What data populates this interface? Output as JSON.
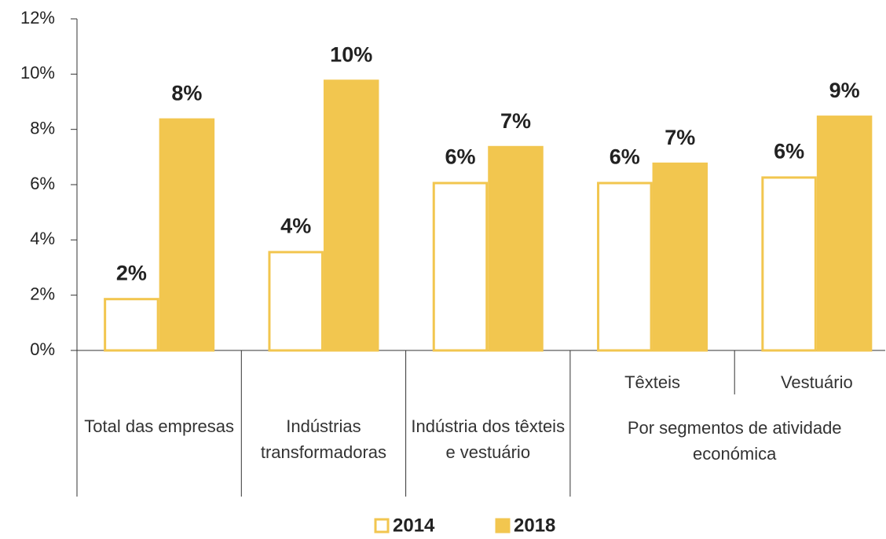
{
  "chart_data": {
    "type": "bar",
    "categories": [
      "Total das empresas",
      "Indústrias transformadoras",
      "Indústria dos têxteis e vestuário",
      "Têxteis",
      "Vestuário"
    ],
    "category_group": "Por segmentos de atividade económica",
    "series": [
      {
        "name": "2014",
        "color": "#f2c64f",
        "fill": "#ffffff",
        "values": [
          1.9,
          3.6,
          6.1,
          6.1,
          6.3
        ],
        "value_labels": [
          "2%",
          "4%",
          "6%",
          "6%",
          "6%"
        ]
      },
      {
        "name": "2018",
        "color": "#f2c64f",
        "fill": "#f2c64f",
        "values": [
          8.4,
          9.8,
          7.4,
          6.8,
          8.5
        ],
        "value_labels": [
          "8%",
          "10%",
          "7%",
          "7%",
          "9%"
        ]
      }
    ],
    "ylim": [
      0,
      12
    ],
    "yticks": [
      {
        "value": 0,
        "label": "0%"
      },
      {
        "value": 2,
        "label": "2%"
      },
      {
        "value": 4,
        "label": "4%"
      },
      {
        "value": 6,
        "label": "6%"
      },
      {
        "value": 8,
        "label": "8%"
      },
      {
        "value": 10,
        "label": "10%"
      },
      {
        "value": 12,
        "label": "12%"
      }
    ],
    "legend": "bottom"
  }
}
